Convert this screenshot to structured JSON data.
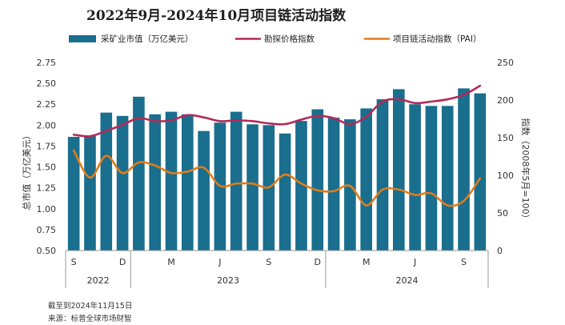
{
  "chart_data": {
    "type": "bar+line",
    "title": "2022年9月-2024年10月项目链活动指数",
    "legend": [
      "采矿业市值（万亿美元）",
      "勘探价格指数",
      "项目链活动指数（PAI）"
    ],
    "series": [
      {
        "name": "采矿业市值（万亿美元）",
        "type": "bar",
        "axis": "left",
        "color": "#1a6e8e",
        "values": [
          1.86,
          1.87,
          2.15,
          2.11,
          2.34,
          2.13,
          2.16,
          2.13,
          1.93,
          2.03,
          2.16,
          2.01,
          2.0,
          1.9,
          2.05,
          2.19,
          2.09,
          2.07,
          2.2,
          2.31,
          2.43,
          2.25,
          2.23,
          2.23,
          2.44,
          2.38
        ]
      },
      {
        "name": "勘探价格指数",
        "type": "line",
        "axis": "right",
        "color": "#b22b57",
        "values": [
          154,
          152,
          159,
          167,
          176,
          172,
          173,
          180,
          177,
          172,
          173,
          172,
          169,
          168,
          174,
          179,
          176,
          168,
          178,
          198,
          201,
          196,
          198,
          201,
          207,
          219
        ]
      },
      {
        "name": "项目链活动指数（PAI）",
        "type": "line",
        "axis": "right",
        "color": "#e07c1a",
        "values": [
          133,
          97,
          126,
          103,
          117,
          113,
          103,
          105,
          110,
          86,
          89,
          89,
          84,
          101,
          89,
          80,
          79,
          86,
          60,
          81,
          81,
          74,
          76,
          60,
          66,
          96
        ]
      }
    ],
    "left_axis": {
      "min": 0.5,
      "max": 2.75,
      "ticks": [
        "0.50",
        "0.75",
        "1.00",
        "1.25",
        "1.50",
        "1.75",
        "2.00",
        "2.25",
        "2.50",
        "2.75"
      ],
      "label": "总市值（万亿美元）"
    },
    "right_axis": {
      "min": 0,
      "max": 250,
      "ticks": [
        "0",
        "50",
        "100",
        "150",
        "200",
        "250"
      ],
      "label": "指数（2008年5月=100）"
    },
    "month_labels": [
      {
        "index": 0,
        "label": "S"
      },
      {
        "index": 3,
        "label": "D"
      },
      {
        "index": 6,
        "label": "M"
      },
      {
        "index": 9,
        "label": "J"
      },
      {
        "index": 12,
        "label": "S"
      },
      {
        "index": 15,
        "label": "D"
      },
      {
        "index": 18,
        "label": "M"
      },
      {
        "index": 21,
        "label": "J"
      },
      {
        "index": 24,
        "label": "S"
      }
    ],
    "year_groups": [
      {
        "label": "2022",
        "start": 0,
        "end": 3
      },
      {
        "label": "2023",
        "start": 4,
        "end": 15
      },
      {
        "label": "2024",
        "start": 16,
        "end": 25
      }
    ]
  },
  "notes": {
    "date": "截至到2024年11月15日",
    "source": "来源：标普全球市场财智"
  }
}
